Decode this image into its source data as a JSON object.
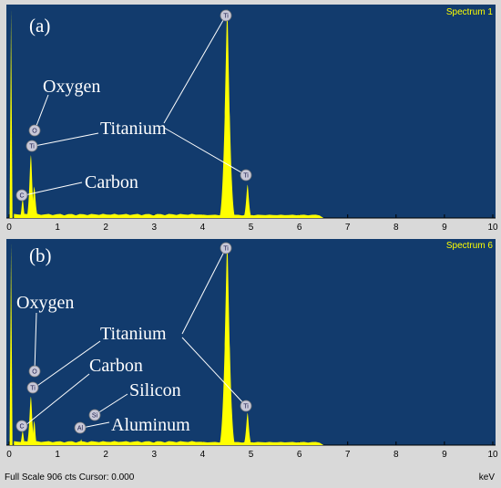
{
  "chart_data": [
    {
      "type": "line",
      "panel_label": "(a)",
      "spectrum_label": "Spectrum 1",
      "xlim": [
        0,
        10
      ],
      "x_ticks": [
        "0",
        "1",
        "2",
        "3",
        "4",
        "5",
        "6",
        "7",
        "8",
        "9",
        "10"
      ],
      "peaks": [
        {
          "element": "C",
          "x": 0.28,
          "height": 0.09
        },
        {
          "element": "O",
          "x": 0.52,
          "height": 0.15
        },
        {
          "element": "Ti",
          "x": 0.45,
          "height": 0.3
        },
        {
          "element": "Ti",
          "x": 4.51,
          "height": 1.0
        },
        {
          "element": "Ti",
          "x": 4.93,
          "height": 0.16
        }
      ],
      "annotations": [
        "Oxygen",
        "Titanium",
        "Carbon"
      ],
      "colors": {
        "background": "#123b6d",
        "spectrum": "#ffff00",
        "panel": "#d9d9d9"
      }
    },
    {
      "type": "line",
      "panel_label": "(b)",
      "spectrum_label": "Spectrum 6",
      "xlim": [
        0,
        10
      ],
      "x_ticks": [
        "0",
        "1",
        "2",
        "3",
        "4",
        "5",
        "6",
        "7",
        "8",
        "9",
        "10"
      ],
      "peaks": [
        {
          "element": "C",
          "x": 0.28,
          "height": 0.07
        },
        {
          "element": "O",
          "x": 0.52,
          "height": 0.12
        },
        {
          "element": "Ti",
          "x": 0.45,
          "height": 0.24
        },
        {
          "element": "Al",
          "x": 1.49,
          "height": 0.03
        },
        {
          "element": "Si",
          "x": 1.74,
          "height": 0.02
        },
        {
          "element": "Ti",
          "x": 4.51,
          "height": 1.0
        },
        {
          "element": "Ti",
          "x": 4.93,
          "height": 0.16
        }
      ],
      "annotations": [
        "Oxygen",
        "Titanium",
        "Carbon",
        "Silicon",
        "Aluminum"
      ],
      "colors": {
        "background": "#123b6d",
        "spectrum": "#ffff00",
        "panel": "#d9d9d9"
      }
    }
  ],
  "status_bar": {
    "left": "Full Scale 906 cts Cursor: 0.000",
    "right": "keV"
  }
}
